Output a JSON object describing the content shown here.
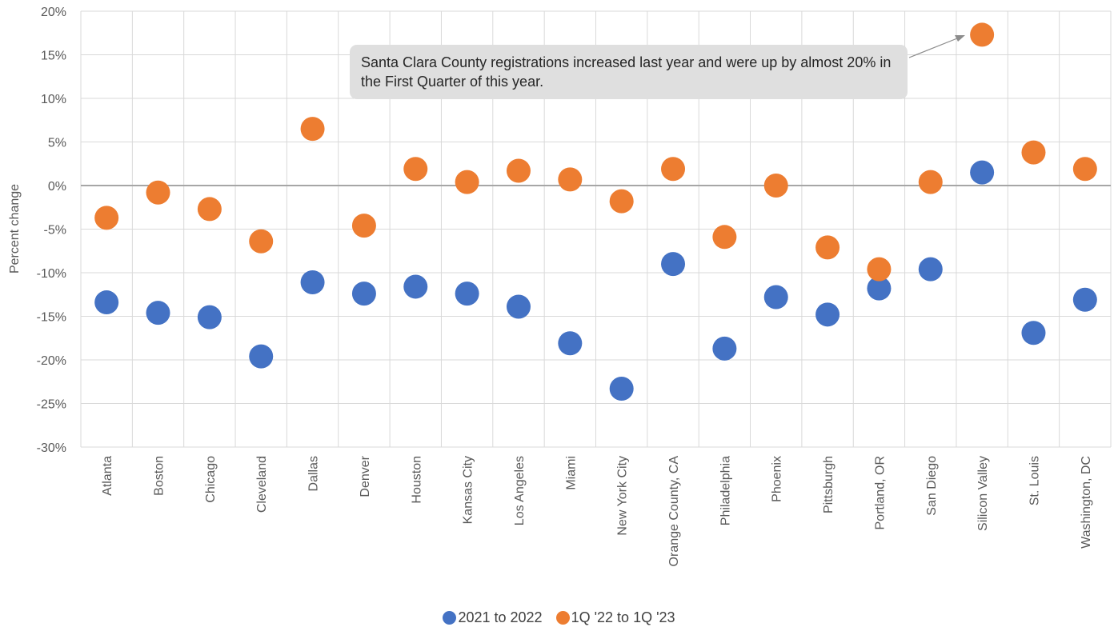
{
  "chart_data": {
    "type": "scatter",
    "ylabel": "Percent change",
    "ylim": [
      -30,
      20
    ],
    "y_ticks": [
      "20%",
      "15%",
      "10%",
      "5%",
      "0%",
      "-5%",
      "-10%",
      "-15%",
      "-20%",
      "-25%",
      "-30%"
    ],
    "categories": [
      "Atlanta",
      "Boston",
      "Chicago",
      "Cleveland",
      "Dallas",
      "Denver",
      "Houston",
      "Kansas City",
      "Los Angeles",
      "Miami",
      "New York City",
      "Orange County, CA",
      "Philadelphia",
      "Phoenix",
      "Pittsburgh",
      "Portland, OR",
      "San Diego",
      "Silicon Valley",
      "St. Louis",
      "Washington, DC"
    ],
    "series": [
      {
        "name": "2021 to 2022",
        "color": "#4472c4",
        "values": [
          -13.4,
          -14.6,
          -15.1,
          -19.6,
          -11.1,
          -12.4,
          -11.6,
          -12.4,
          -13.9,
          -18.1,
          -23.3,
          -9.0,
          -18.7,
          -12.8,
          -14.8,
          -11.8,
          -9.6,
          1.5,
          -16.9,
          -13.1
        ]
      },
      {
        "name": "1Q '22 to 1Q '23",
        "color": "#ed7d31",
        "values": [
          -3.7,
          -0.8,
          -2.7,
          -6.4,
          6.5,
          -4.6,
          1.9,
          0.4,
          1.7,
          0.7,
          -1.8,
          1.9,
          -5.9,
          0.0,
          -7.1,
          -9.6,
          0.4,
          17.3,
          3.8,
          1.9
        ]
      }
    ],
    "annotation": "Santa Clara County registrations increased last year and were up by almost 20% in the First Quarter of this year.",
    "grid": true,
    "legend_position": "bottom"
  }
}
